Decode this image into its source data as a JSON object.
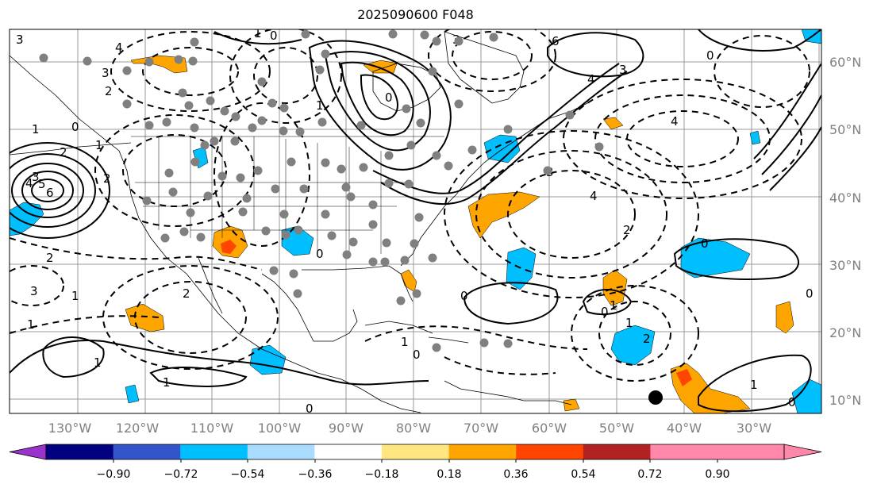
{
  "title": "2025090600 F048",
  "longitude_labels": [
    "130°W",
    "120°W",
    "110°W",
    "100°W",
    "90°W",
    "80°W",
    "70°W",
    "60°W",
    "50°W",
    "40°W",
    "30°W"
  ],
  "latitude_labels": [
    "60°N",
    "50°N",
    "40°N",
    "30°N",
    "20°N",
    "10°N"
  ],
  "colorbar": {
    "tick_labels": [
      "−0.90",
      "−0.72",
      "−0.54",
      "−0.36",
      "−0.18",
      "0.18",
      "0.36",
      "0.54",
      "0.72",
      "0.90"
    ],
    "colors": [
      "#9933cc",
      "#000080",
      "#3355cc",
      "#00bfff",
      "#aadcff",
      "#ffffff",
      "#ffe680",
      "#ffa500",
      "#ff4500",
      "#b22222",
      "#ff88aa"
    ]
  },
  "contour_labels": [
    "3",
    "4",
    "3",
    "2",
    "1",
    "0",
    "1",
    "2",
    "3",
    "4",
    "5",
    "6",
    "1",
    "0",
    "6",
    "3",
    "4",
    "3",
    "0",
    "4",
    "2",
    "1",
    "0",
    "4",
    "3",
    "2",
    "0",
    "2",
    "3",
    "1",
    "1",
    "0",
    "0",
    "1",
    "2",
    "1",
    "0",
    "1",
    "1",
    "0",
    "0",
    "1",
    "2",
    "0",
    "1",
    "0"
  ],
  "colors": {
    "warm": "#ffa500",
    "hot": "#ff4500",
    "cold": "#00bfff",
    "station_marker": "#808080",
    "axis_label": "#808080"
  }
}
